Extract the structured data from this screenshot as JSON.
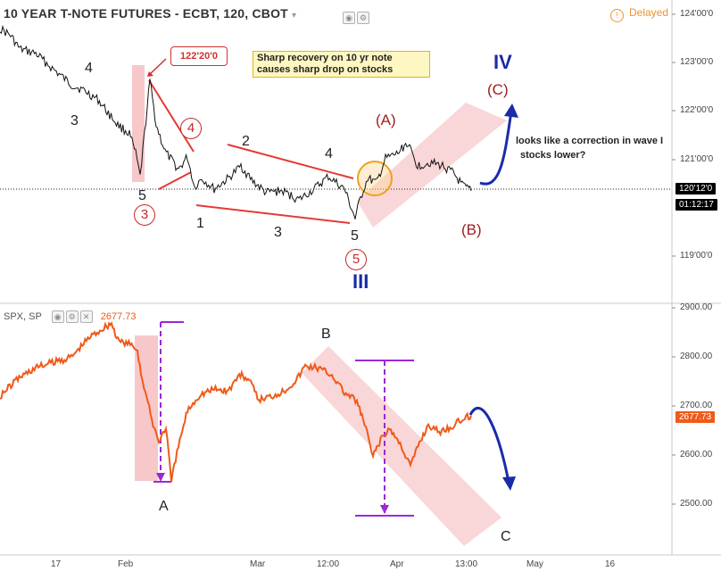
{
  "header": {
    "title": "10 YEAR T-NOTE FUTURES - ECBT, 120, CBOT",
    "status": "Delayed"
  },
  "top_chart": {
    "price_ticks": [
      "124'00'0",
      "123'00'0",
      "122'00'0",
      "121'00'0",
      "119'00'0"
    ],
    "last_price": "120'12'0",
    "countdown": "01:12:17",
    "annotations": {
      "callout": "122'20'0",
      "note": [
        "Sharp recovery on 10 yr note",
        "causes sharp drop on stocks"
      ],
      "comment_line1": "looks like a correction in wave I",
      "comment_line2": "stocks lower?",
      "wave_4": "4",
      "wave_3": "3",
      "wave_5": "5",
      "circle_3": "3",
      "circle_4": "4",
      "circle_5": "5",
      "leg_1": "1",
      "leg_2": "2",
      "leg_3": "3",
      "leg_4": "4",
      "leg_5": "5",
      "corr_A": "(A)",
      "corr_B": "(B)",
      "corr_C": "(C)",
      "wave_III": "III",
      "wave_IV": "IV"
    }
  },
  "bottom_chart": {
    "legend": "SPX, SP",
    "legend_value": "2677.73",
    "price_ticks": [
      "2900.00",
      "2800.00",
      "2700.00",
      "2600.00",
      "2500.00"
    ],
    "last_price": "2677.73",
    "annotations": {
      "A": "A",
      "B": "B",
      "C": "C"
    }
  },
  "x_axis": [
    "17",
    "Feb",
    "Mar",
    "12:00",
    "Apr",
    "13:00",
    "May",
    "16"
  ],
  "colors": {
    "price_line_top": "#111111",
    "price_line_bottom": "#ef5a1a",
    "channel_fill": "#f4b4b8",
    "wave_red": "#c62828",
    "wave_blue": "#1a2ba8",
    "dashed_purple": "#9c27d6",
    "note_bg": "#fff7c2",
    "delayed": "#f0922a"
  },
  "icons": [
    "chevron-down-icon",
    "eye-icon",
    "gear-icon",
    "close-icon",
    "clock-icon",
    "arrow-up-icon",
    "arrow-down-icon"
  ]
}
